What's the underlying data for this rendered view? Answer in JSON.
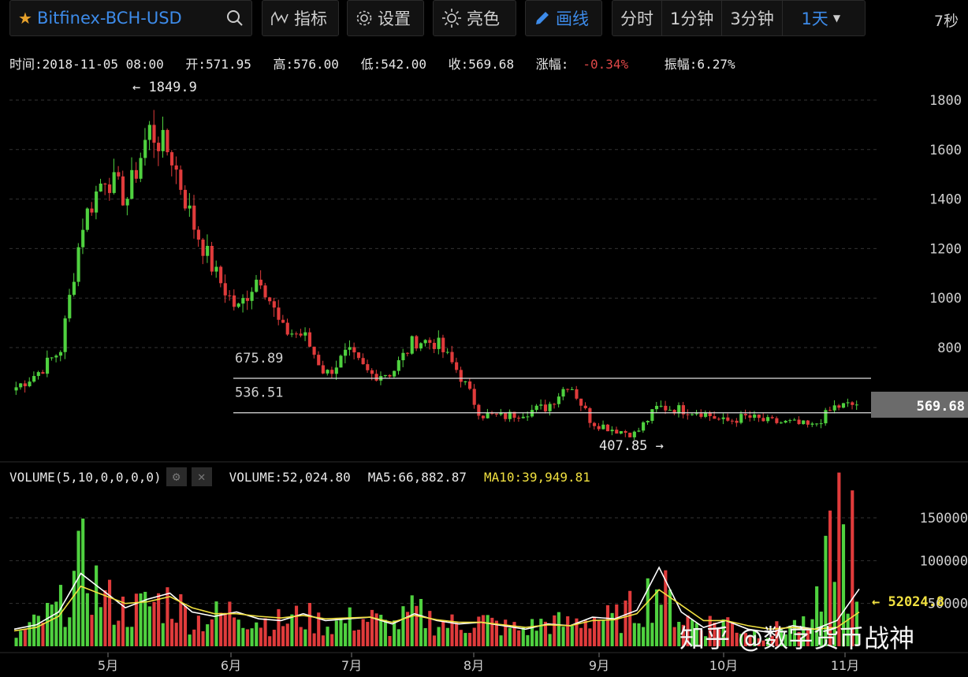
{
  "toolbar": {
    "symbol": "Bitfinex-BCH-USD",
    "indicators_label": "指标",
    "settings_label": "设置",
    "theme_label": "亮色",
    "draw_label": "画线",
    "intervals": [
      "分时",
      "1分钟",
      "3分钟"
    ],
    "interval_selected": "1天",
    "refresh": "7秒"
  },
  "info": {
    "time": "时间:2018-11-05 08:00",
    "open": "开:571.95",
    "high": "高:576.00",
    "low": "低:542.00",
    "close": "收:569.68",
    "change_label": "涨幅:",
    "change_value": "-0.34%",
    "amplitude": "振幅:6.27%"
  },
  "volume_info": {
    "title": "VOLUME(5,10,0,0,0,0)",
    "volume": "VOLUME:52,024.80",
    "ma5": "MA5:66,882.87",
    "ma10": "MA10:39,949.81"
  },
  "watermark": "知乎 @数字货币战神",
  "colors": {
    "up": "#4fd13f",
    "down": "#e03b3b",
    "ma5": "#ffffff",
    "ma10": "#f0e040",
    "accent": "#3d8be9"
  },
  "chart_data": [
    {
      "type": "candlestick",
      "x_labels": [
        "5月",
        "6月",
        "7月",
        "8月",
        "9月",
        "10月",
        "11月"
      ],
      "y_ticks": [
        800,
        1000,
        1200,
        1400,
        1600,
        1800
      ],
      "ylim": [
        400,
        1900
      ],
      "grid": true,
      "annotations": {
        "high_marker": "← 1849.9",
        "low_marker": "407.85 →",
        "line1_label": "675.89",
        "line2_label": "536.51",
        "current_price": "569.68",
        "hidden_tick": "600"
      },
      "hlines": [
        675.89,
        536.51
      ],
      "weekly_closes": [
        640,
        700,
        790,
        1300,
        1500,
        1400,
        1680,
        1580,
        1300,
        1100,
        950,
        1100,
        870,
        850,
        690,
        780,
        690,
        700,
        830,
        820,
        700,
        530,
        520,
        540,
        560,
        660,
        500,
        470,
        450,
        560,
        550,
        540,
        500,
        520,
        500,
        495,
        480,
        560,
        570
      ]
    },
    {
      "type": "bar",
      "y_ticks": [
        "50000",
        "100000",
        "150000"
      ],
      "ylim": [
        0,
        190000
      ],
      "current_volume_label": "← 52024.8",
      "series": [
        {
          "values": [
            12000,
            28000,
            45000,
            95000,
            55000,
            40000,
            48000,
            55000,
            30000,
            35000,
            42000,
            30000,
            28000,
            35000,
            25000,
            30000,
            32000,
            22000,
            40000,
            28000,
            25000,
            30000,
            22000,
            20000,
            28000,
            25000,
            35000,
            30000,
            45000,
            70000,
            35000,
            25000,
            30000,
            18000,
            15000,
            25000,
            20000,
            160000,
            52024
          ]
        },
        {
          "name": "MA5",
          "values": [
            20000,
            25000,
            40000,
            85000,
            65000,
            45000,
            55000,
            62000,
            40000,
            35000,
            40000,
            32000,
            30000,
            38000,
            30000,
            32000,
            34000,
            26000,
            38000,
            30000,
            26000,
            28000,
            24000,
            20000,
            26000,
            24000,
            34000,
            32000,
            42000,
            92000,
            40000,
            22000,
            30000,
            20000,
            16000,
            24000,
            20000,
            30000,
            66882
          ]
        },
        {
          "name": "MA10",
          "values": [
            18000,
            22000,
            35000,
            70000,
            60000,
            50000,
            52000,
            58000,
            45000,
            38000,
            38000,
            35000,
            33000,
            36000,
            32000,
            33000,
            34000,
            28000,
            36000,
            31000,
            28000,
            28000,
            25000,
            22000,
            25000,
            24000,
            30000,
            31000,
            38000,
            66000,
            48000,
            30000,
            30000,
            24000,
            20000,
            22000,
            20000,
            22000,
            39949
          ]
        }
      ]
    }
  ]
}
